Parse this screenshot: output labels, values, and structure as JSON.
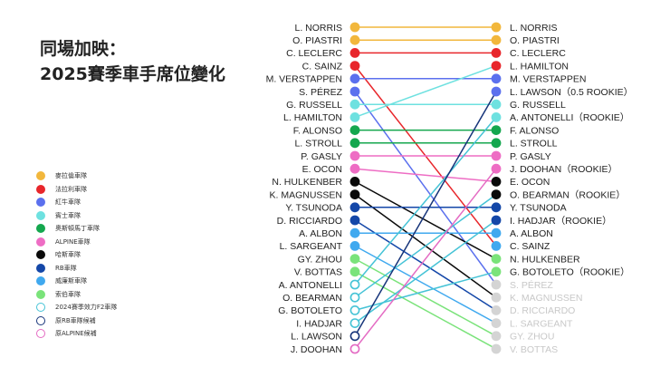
{
  "title_line1": "同場加映：",
  "title_line2": "2025賽季車手席位變化",
  "teams": {
    "mclaren": {
      "label": "麥拉倫車隊",
      "color": "#f2b73c",
      "hollow": false
    },
    "ferrari": {
      "label": "法拉利車隊",
      "color": "#e8262b",
      "hollow": false
    },
    "redbull": {
      "label": "紅牛車隊",
      "color": "#5b70ee",
      "hollow": false
    },
    "mercedes": {
      "label": "賓士車隊",
      "color": "#6ee1e0",
      "hollow": false
    },
    "aston": {
      "label": "奧斯頓馬丁車隊",
      "color": "#14a74e",
      "hollow": false
    },
    "alpine": {
      "label": "ALPINE車隊",
      "color": "#ee6dc4",
      "hollow": false
    },
    "haas": {
      "label": "哈斯車隊",
      "color": "#0a0a0a",
      "hollow": false
    },
    "rb": {
      "label": "RB車隊",
      "color": "#1447a8",
      "hollow": false
    },
    "williams": {
      "label": "威廉斯車隊",
      "color": "#40a9ef",
      "hollow": false
    },
    "sauber": {
      "label": "索伯車隊",
      "color": "#7ae37a",
      "hollow": false
    },
    "f2": {
      "label": "2024賽季效力F2車隊",
      "color": "#45c3d6",
      "hollow": true
    },
    "exrb": {
      "label": "原RB車隊候補",
      "color": "#16347a",
      "hollow": true
    },
    "exalpine": {
      "label": "原ALPINE候補",
      "color": "#e46bc3",
      "hollow": true
    }
  },
  "legend_order": [
    "mclaren",
    "ferrari",
    "redbull",
    "mercedes",
    "aston",
    "alpine",
    "haas",
    "rb",
    "williams",
    "sauber",
    "f2",
    "exrb",
    "exalpine"
  ],
  "left_column": [
    {
      "name": "L. NORRIS",
      "team": "mclaren"
    },
    {
      "name": "O. PIASTRI",
      "team": "mclaren"
    },
    {
      "name": "C. LECLERC",
      "team": "ferrari"
    },
    {
      "name": "C. SAINZ",
      "team": "ferrari"
    },
    {
      "name": "M. VERSTAPPEN",
      "team": "redbull"
    },
    {
      "name": "S. PÉREZ",
      "team": "redbull"
    },
    {
      "name": "G. RUSSELL",
      "team": "mercedes"
    },
    {
      "name": "L. HAMILTON",
      "team": "mercedes"
    },
    {
      "name": "F. ALONSO",
      "team": "aston"
    },
    {
      "name": "L. STROLL",
      "team": "aston"
    },
    {
      "name": "P. GASLY",
      "team": "alpine"
    },
    {
      "name": "E. OCON",
      "team": "alpine"
    },
    {
      "name": "N. HULKENBER",
      "team": "haas"
    },
    {
      "name": "K. MAGNUSSEN",
      "team": "haas"
    },
    {
      "name": "Y. TSUNODA",
      "team": "rb"
    },
    {
      "name": "D. RICCIARDO",
      "team": "rb"
    },
    {
      "name": "A. ALBON",
      "team": "williams"
    },
    {
      "name": "L. SARGEANT",
      "team": "williams"
    },
    {
      "name": "GY. ZHOU",
      "team": "sauber"
    },
    {
      "name": "V. BOTTAS",
      "team": "sauber"
    },
    {
      "name": "A. ANTONELLI",
      "team": "f2"
    },
    {
      "name": "O. BEARMAN",
      "team": "f2"
    },
    {
      "name": "G. BOTOLETO",
      "team": "f2"
    },
    {
      "name": "I. HADJAR",
      "team": "f2"
    },
    {
      "name": "L. LAWSON",
      "team": "exrb"
    },
    {
      "name": "J. DOOHAN",
      "team": "exalpine"
    }
  ],
  "right_column": [
    {
      "name": "L. NORRIS",
      "team": "mclaren",
      "faded": false
    },
    {
      "name": "O. PIASTRI",
      "team": "mclaren",
      "faded": false
    },
    {
      "name": "C. LECLERC",
      "team": "ferrari",
      "faded": false
    },
    {
      "name": "L. HAMILTON",
      "team": "ferrari",
      "faded": false
    },
    {
      "name": "M. VERSTAPPEN",
      "team": "redbull",
      "faded": false
    },
    {
      "name": "L. LAWSON（0.5 ROOKIE）",
      "team": "redbull",
      "faded": false
    },
    {
      "name": "G. RUSSELL",
      "team": "mercedes",
      "faded": false
    },
    {
      "name": "A. ANTONELLI（ROOKIE）",
      "team": "mercedes",
      "faded": false
    },
    {
      "name": "F. ALONSO",
      "team": "aston",
      "faded": false
    },
    {
      "name": "L. STROLL",
      "team": "aston",
      "faded": false
    },
    {
      "name": "P. GASLY",
      "team": "alpine",
      "faded": false
    },
    {
      "name": "J. DOOHAN（ROOKIE）",
      "team": "alpine",
      "faded": false
    },
    {
      "name": "E. OCON",
      "team": "haas",
      "faded": false
    },
    {
      "name": "O. BEARMAN（ROOKIE）",
      "team": "haas",
      "faded": false
    },
    {
      "name": "Y. TSUNODA",
      "team": "rb",
      "faded": false
    },
    {
      "name": "I. HADJAR（ROOKIE）",
      "team": "rb",
      "faded": false
    },
    {
      "name": "A. ALBON",
      "team": "williams",
      "faded": false
    },
    {
      "name": "C. SAINZ",
      "team": "williams",
      "faded": false
    },
    {
      "name": "N. HULKENBER",
      "team": "sauber",
      "faded": false
    },
    {
      "name": "G. BOTOLETO（ROOKIE）",
      "team": "sauber",
      "faded": false
    },
    {
      "name": "S. PÉREZ",
      "team": "none",
      "faded": true
    },
    {
      "name": "K. MAGNUSSEN",
      "team": "none",
      "faded": true
    },
    {
      "name": "D. RICCIARDO",
      "team": "none",
      "faded": true
    },
    {
      "name": "L. SARGEANT",
      "team": "none",
      "faded": true
    },
    {
      "name": "GY. ZHOU",
      "team": "none",
      "faded": true
    },
    {
      "name": "V. BOTTAS",
      "team": "none",
      "faded": true
    }
  ],
  "faded_color": "#d4d4d4",
  "connections": [
    {
      "from": 0,
      "to": 0,
      "team": "mclaren"
    },
    {
      "from": 1,
      "to": 1,
      "team": "mclaren"
    },
    {
      "from": 2,
      "to": 2,
      "team": "ferrari"
    },
    {
      "from": 3,
      "to": 17,
      "team": "ferrari"
    },
    {
      "from": 4,
      "to": 4,
      "team": "redbull"
    },
    {
      "from": 5,
      "to": 20,
      "team": "redbull"
    },
    {
      "from": 6,
      "to": 6,
      "team": "mercedes"
    },
    {
      "from": 7,
      "to": 3,
      "team": "mercedes"
    },
    {
      "from": 8,
      "to": 8,
      "team": "aston"
    },
    {
      "from": 9,
      "to": 9,
      "team": "aston"
    },
    {
      "from": 10,
      "to": 10,
      "team": "alpine"
    },
    {
      "from": 11,
      "to": 12,
      "team": "alpine"
    },
    {
      "from": 12,
      "to": 18,
      "team": "haas"
    },
    {
      "from": 13,
      "to": 21,
      "team": "haas"
    },
    {
      "from": 14,
      "to": 14,
      "team": "rb"
    },
    {
      "from": 15,
      "to": 22,
      "team": "rb"
    },
    {
      "from": 16,
      "to": 16,
      "team": "williams"
    },
    {
      "from": 17,
      "to": 23,
      "team": "williams"
    },
    {
      "from": 18,
      "to": 24,
      "team": "sauber"
    },
    {
      "from": 19,
      "to": 25,
      "team": "sauber"
    },
    {
      "from": 20,
      "to": 7,
      "team": "f2"
    },
    {
      "from": 21,
      "to": 13,
      "team": "f2"
    },
    {
      "from": 22,
      "to": 19,
      "team": "f2"
    },
    {
      "from": 23,
      "to": 15,
      "team": "f2"
    },
    {
      "from": 24,
      "to": 5,
      "team": "exrb"
    },
    {
      "from": 25,
      "to": 11,
      "team": "exalpine"
    }
  ]
}
